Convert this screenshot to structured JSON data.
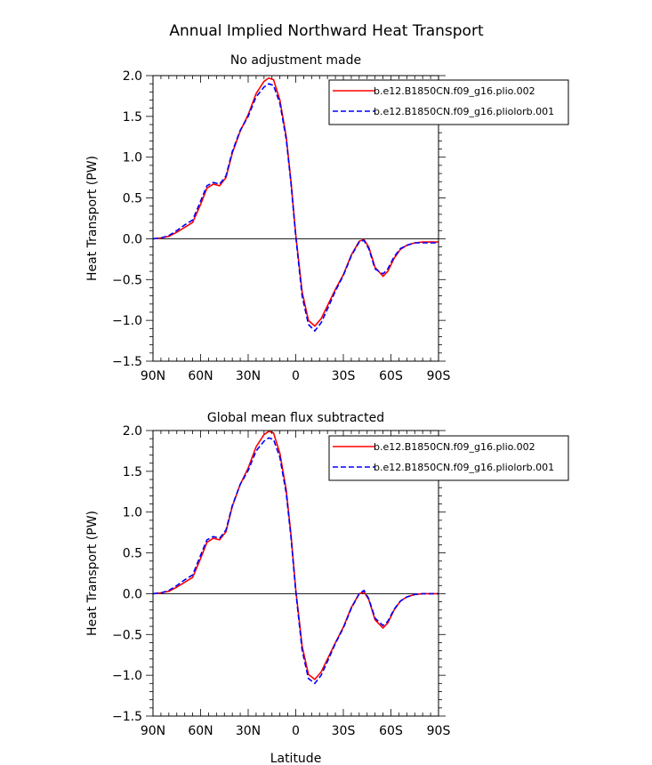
{
  "figure": {
    "title": "Annual Implied Northward Heat Transport"
  },
  "chart_data": [
    {
      "type": "line",
      "title": "No adjustment made",
      "xlabel": "",
      "ylabel": "Heat Transport (PW)",
      "xlim": [
        90,
        -90
      ],
      "ylim": [
        -1.5,
        2.0
      ],
      "xticks": [
        90,
        60,
        30,
        0,
        -30,
        -60,
        -90
      ],
      "xtick_labels": [
        "90N",
        "60N",
        "30N",
        "0",
        "30S",
        "60S",
        "90S"
      ],
      "yticks": [
        2.0,
        1.5,
        1.0,
        0.5,
        0.0,
        -0.5,
        -1.0,
        -1.5
      ],
      "ytick_labels": [
        "2.0",
        "1.5",
        "1.0",
        "0.5",
        "0.0",
        "−0.5",
        "−1.0",
        "−1.5"
      ],
      "legend_position": "top-right",
      "series": [
        {
          "name": "b.e12.B1850CN.f09_g16.plio.002",
          "color": "#ff0000",
          "dash": "solid",
          "x": [
            90,
            85,
            80,
            75,
            70,
            65,
            60,
            56,
            52,
            48,
            44,
            40,
            35,
            30,
            25,
            20,
            17,
            14,
            10,
            6,
            3,
            0,
            -4,
            -8,
            -12,
            -16,
            -20,
            -25,
            -30,
            -35,
            -40,
            -43,
            -46,
            -50,
            -55,
            -58,
            -62,
            -66,
            -70,
            -75,
            -80,
            -85,
            -90
          ],
          "y": [
            0.0,
            0.01,
            0.03,
            0.08,
            0.14,
            0.2,
            0.42,
            0.62,
            0.67,
            0.65,
            0.75,
            1.05,
            1.32,
            1.52,
            1.78,
            1.93,
            1.97,
            1.95,
            1.7,
            1.25,
            0.7,
            0.05,
            -0.65,
            -1.0,
            -1.07,
            -0.98,
            -0.82,
            -0.62,
            -0.44,
            -0.2,
            -0.03,
            -0.01,
            -0.1,
            -0.35,
            -0.46,
            -0.4,
            -0.24,
            -0.13,
            -0.08,
            -0.05,
            -0.04,
            -0.04,
            -0.04
          ]
        },
        {
          "name": "b.e12.B1850CN.f09_g16.pliolorb.001",
          "color": "#0000ff",
          "dash": "dashed",
          "x": [
            90,
            85,
            80,
            75,
            70,
            65,
            60,
            56,
            52,
            48,
            44,
            40,
            35,
            30,
            25,
            20,
            17,
            14,
            10,
            6,
            3,
            0,
            -4,
            -8,
            -12,
            -16,
            -20,
            -25,
            -30,
            -35,
            -40,
            -43,
            -46,
            -50,
            -55,
            -58,
            -62,
            -66,
            -70,
            -75,
            -80,
            -85,
            -90
          ],
          "y": [
            0.0,
            0.01,
            0.04,
            0.1,
            0.17,
            0.23,
            0.46,
            0.65,
            0.69,
            0.67,
            0.77,
            1.07,
            1.33,
            1.5,
            1.74,
            1.86,
            1.9,
            1.88,
            1.66,
            1.22,
            0.68,
            0.03,
            -0.7,
            -1.05,
            -1.13,
            -1.03,
            -0.86,
            -0.64,
            -0.45,
            -0.21,
            -0.04,
            -0.02,
            -0.12,
            -0.37,
            -0.43,
            -0.37,
            -0.22,
            -0.12,
            -0.08,
            -0.05,
            -0.05,
            -0.05,
            -0.05
          ]
        }
      ]
    },
    {
      "type": "line",
      "title": "Global mean flux subtracted",
      "xlabel": "Latitude",
      "ylabel": "Heat Transport (PW)",
      "xlim": [
        90,
        -90
      ],
      "ylim": [
        -1.5,
        2.0
      ],
      "xticks": [
        90,
        60,
        30,
        0,
        -30,
        -60,
        -90
      ],
      "xtick_labels": [
        "90N",
        "60N",
        "30N",
        "0",
        "30S",
        "60S",
        "90S"
      ],
      "yticks": [
        2.0,
        1.5,
        1.0,
        0.5,
        0.0,
        -0.5,
        -1.0,
        -1.5
      ],
      "ytick_labels": [
        "2.0",
        "1.5",
        "1.0",
        "0.5",
        "0.0",
        "−0.5",
        "−1.0",
        "−1.5"
      ],
      "legend_position": "top-right",
      "series": [
        {
          "name": "b.e12.B1850CN.f09_g16.plio.002",
          "color": "#ff0000",
          "dash": "solid",
          "x": [
            90,
            85,
            80,
            75,
            70,
            65,
            60,
            56,
            52,
            48,
            44,
            40,
            35,
            30,
            25,
            20,
            17,
            14,
            10,
            6,
            3,
            0,
            -4,
            -8,
            -12,
            -16,
            -20,
            -25,
            -30,
            -35,
            -40,
            -43,
            -46,
            -50,
            -55,
            -58,
            -62,
            -66,
            -70,
            -75,
            -80,
            -85,
            -90
          ],
          "y": [
            0.0,
            0.01,
            0.03,
            0.08,
            0.14,
            0.2,
            0.43,
            0.63,
            0.68,
            0.66,
            0.76,
            1.07,
            1.34,
            1.54,
            1.8,
            1.95,
            1.99,
            1.97,
            1.72,
            1.27,
            0.72,
            0.05,
            -0.64,
            -0.99,
            -1.05,
            -0.96,
            -0.8,
            -0.6,
            -0.41,
            -0.17,
            0.0,
            0.02,
            -0.07,
            -0.32,
            -0.42,
            -0.36,
            -0.2,
            -0.09,
            -0.04,
            -0.01,
            0.0,
            0.0,
            0.0
          ]
        },
        {
          "name": "b.e12.B1850CN.f09_g16.pliolorb.001",
          "color": "#0000ff",
          "dash": "dashed",
          "x": [
            90,
            85,
            80,
            75,
            70,
            65,
            60,
            56,
            52,
            48,
            44,
            40,
            35,
            30,
            25,
            20,
            17,
            14,
            10,
            6,
            3,
            0,
            -4,
            -8,
            -12,
            -16,
            -20,
            -25,
            -30,
            -35,
            -40,
            -43,
            -46,
            -50,
            -55,
            -58,
            -62,
            -66,
            -70,
            -75,
            -80,
            -85,
            -90
          ],
          "y": [
            0.0,
            0.01,
            0.04,
            0.1,
            0.17,
            0.23,
            0.47,
            0.66,
            0.7,
            0.68,
            0.78,
            1.08,
            1.34,
            1.51,
            1.75,
            1.87,
            1.91,
            1.89,
            1.67,
            1.23,
            0.69,
            0.03,
            -0.69,
            -1.04,
            -1.1,
            -1.0,
            -0.83,
            -0.61,
            -0.42,
            -0.18,
            0.0,
            0.04,
            -0.06,
            -0.3,
            -0.39,
            -0.34,
            -0.19,
            -0.09,
            -0.04,
            -0.01,
            0.0,
            0.0,
            0.0
          ]
        }
      ]
    }
  ]
}
